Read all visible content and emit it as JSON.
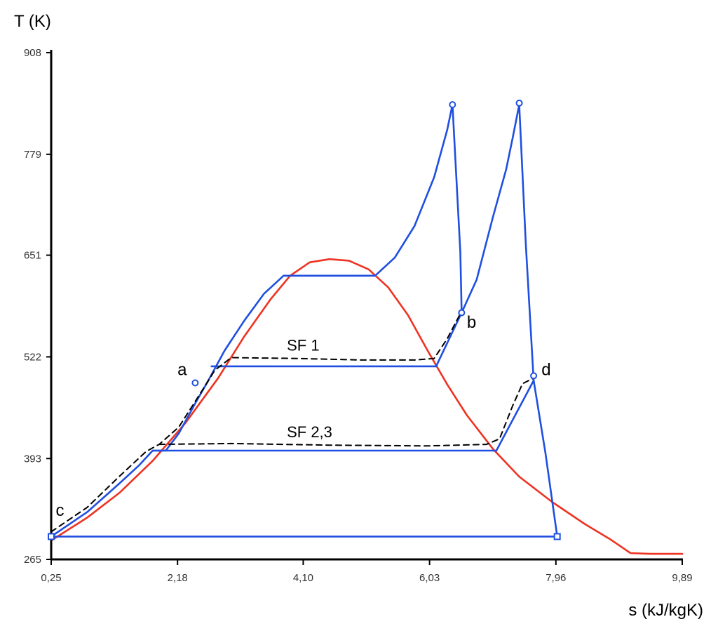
{
  "chart_data": {
    "type": "line",
    "title": "",
    "xlabel": "s (kJ/kgK)",
    "ylabel": "T (K)",
    "xlim": [
      0.25,
      9.89
    ],
    "ylim": [
      265,
      908
    ],
    "x_ticks": [
      "0,25",
      "2,18",
      "4,10",
      "6,03",
      "7,96",
      "9,89"
    ],
    "y_ticks": [
      "265",
      "393",
      "522",
      "651",
      "779",
      "908"
    ],
    "grid": false,
    "colors": {
      "saturation_dome": "#ee3322",
      "cycle": "#1f4fe0",
      "effective": "#000000"
    },
    "series": [
      {
        "role": "saturation-dome",
        "style": "solid",
        "points": [
          [
            0.25,
            289
          ],
          [
            0.8,
            318
          ],
          [
            1.3,
            350
          ],
          [
            1.8,
            390
          ],
          [
            2.3,
            438
          ],
          [
            2.8,
            495
          ],
          [
            3.2,
            548
          ],
          [
            3.6,
            595
          ],
          [
            3.9,
            625
          ],
          [
            4.2,
            642
          ],
          [
            4.5,
            646
          ],
          [
            4.8,
            644
          ],
          [
            5.1,
            633
          ],
          [
            5.4,
            610
          ],
          [
            5.7,
            575
          ],
          [
            6.0,
            530
          ],
          [
            6.3,
            487
          ],
          [
            6.6,
            448
          ],
          [
            7.0,
            405
          ],
          [
            7.4,
            370
          ],
          [
            7.9,
            338
          ],
          [
            8.4,
            310
          ],
          [
            8.8,
            290
          ],
          [
            9.1,
            273
          ],
          [
            9.4,
            272
          ],
          [
            9.89,
            272
          ]
        ]
      },
      {
        "role": "cycle",
        "style": "solid",
        "points": [
          [
            0.25,
            294
          ],
          [
            0.8,
            325
          ],
          [
            1.3,
            362
          ],
          [
            1.6,
            385
          ],
          [
            1.8,
            403
          ],
          [
            2.0,
            403
          ],
          [
            2.2,
            425
          ],
          [
            2.45,
            463
          ],
          [
            2.65,
            492
          ],
          [
            2.9,
            530
          ],
          [
            3.2,
            568
          ],
          [
            3.5,
            602
          ],
          [
            3.8,
            625
          ],
          [
            5.2,
            625
          ],
          [
            5.5,
            648
          ],
          [
            5.8,
            688
          ],
          [
            6.1,
            750
          ],
          [
            6.3,
            810
          ],
          [
            6.38,
            842
          ],
          [
            6.5,
            655
          ],
          [
            6.52,
            578
          ],
          [
            6.75,
            620
          ],
          [
            7.0,
            700
          ],
          [
            7.2,
            760
          ],
          [
            7.3,
            800
          ],
          [
            7.4,
            842
          ],
          [
            7.5,
            665
          ],
          [
            7.62,
            492
          ],
          [
            7.8,
            400
          ],
          [
            7.98,
            294
          ],
          [
            0.25,
            294
          ]
        ]
      },
      {
        "role": "cycle",
        "style": "solid",
        "points": [
          [
            2.7,
            510
          ],
          [
            6.13,
            510
          ]
        ]
      },
      {
        "role": "cycle",
        "style": "solid",
        "points": [
          [
            6.13,
            510
          ],
          [
            6.52,
            578
          ]
        ]
      },
      {
        "role": "cycle",
        "style": "solid",
        "points": [
          [
            1.8,
            403
          ],
          [
            7.05,
            403
          ]
        ]
      },
      {
        "role": "cycle",
        "style": "solid",
        "points": [
          [
            7.05,
            403
          ],
          [
            7.62,
            492
          ]
        ]
      },
      {
        "role": "effective",
        "style": "dashed",
        "points": [
          [
            0.25,
            300
          ],
          [
            0.8,
            331
          ],
          [
            1.3,
            371
          ],
          [
            1.7,
            402
          ],
          [
            1.9,
            411
          ],
          [
            2.2,
            433
          ],
          [
            2.5,
            472
          ],
          [
            2.75,
            505
          ],
          [
            3.0,
            521
          ],
          [
            4.0,
            520
          ],
          [
            5.0,
            518
          ],
          [
            5.8,
            518
          ],
          [
            6.1,
            520
          ],
          [
            6.3,
            545
          ],
          [
            6.52,
            580
          ]
        ]
      },
      {
        "role": "effective",
        "style": "dashed",
        "points": [
          [
            1.9,
            411
          ],
          [
            3.0,
            412
          ],
          [
            4.5,
            410
          ],
          [
            6.0,
            409
          ],
          [
            6.9,
            411
          ],
          [
            7.1,
            418
          ],
          [
            7.3,
            460
          ],
          [
            7.45,
            488
          ],
          [
            7.62,
            495
          ]
        ]
      }
    ],
    "markers": [
      {
        "x": 0.25,
        "y": 294,
        "shape": "square"
      },
      {
        "x": 7.98,
        "y": 294,
        "shape": "square"
      },
      {
        "x": 2.45,
        "y": 489,
        "shape": "circle"
      },
      {
        "x": 6.38,
        "y": 842,
        "shape": "circle"
      },
      {
        "x": 6.52,
        "y": 578,
        "shape": "circle"
      },
      {
        "x": 7.4,
        "y": 844,
        "shape": "circle"
      },
      {
        "x": 7.62,
        "y": 498,
        "shape": "circle"
      }
    ],
    "annotations": [
      {
        "text": "a",
        "x": 2.18,
        "y": 499
      },
      {
        "text": "b",
        "x": 6.6,
        "y": 559
      },
      {
        "text": "c",
        "x": 0.32,
        "y": 320
      },
      {
        "text": "d",
        "x": 7.74,
        "y": 499
      },
      {
        "text": "SF 1",
        "x": 3.85,
        "y": 530
      },
      {
        "text": "SF 2,3",
        "x": 3.85,
        "y": 420
      }
    ]
  }
}
